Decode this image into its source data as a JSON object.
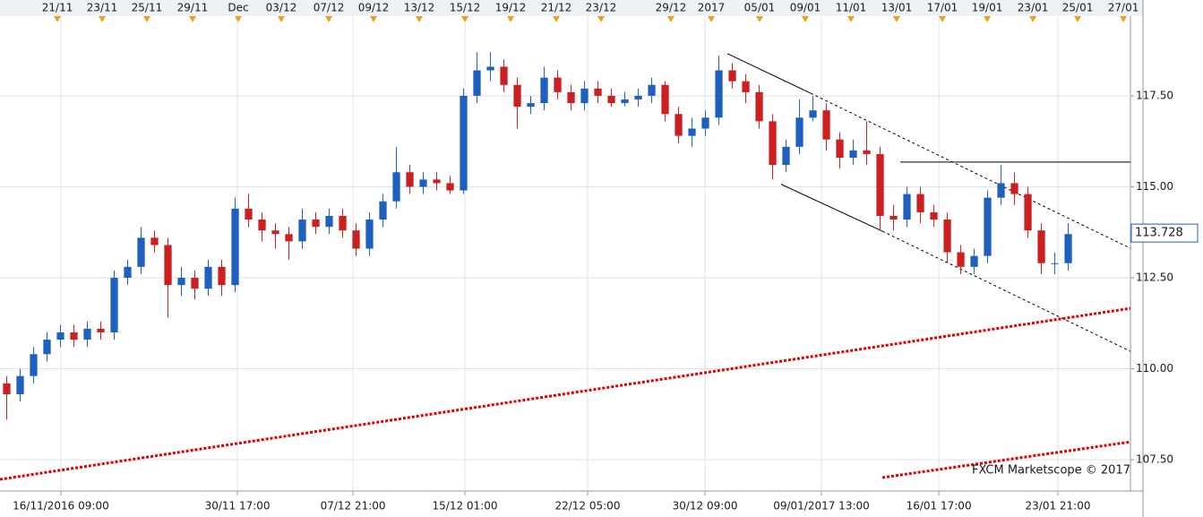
{
  "chart_data": {
    "type": "candlestick",
    "watermark": "FXCM Marketscope © 2017",
    "up_color": "#1f5fbf",
    "down_color": "#cc1f1f",
    "grid": true,
    "xlim": [
      -0.5,
      83.63
    ],
    "ylim": [
      106.64,
      119.69
    ],
    "yticks": [
      {
        "value": 117.5,
        "label": "117.50"
      },
      {
        "value": 115,
        "label": "115.00"
      },
      {
        "value": 112.5,
        "label": "112.50"
      },
      {
        "value": 110,
        "label": "110.00"
      },
      {
        "value": 107.5,
        "label": "107.50"
      }
    ],
    "xticks": [
      {
        "value": 4.03,
        "label": "16/11/2016 09:00"
      },
      {
        "value": 17.17,
        "label": "30/11 17:00"
      },
      {
        "value": 25.77,
        "label": "07/12 21:00"
      },
      {
        "value": 34.1,
        "label": "15/12 01:00"
      },
      {
        "value": 43.23,
        "label": "22/12 05:00"
      },
      {
        "value": 51.97,
        "label": "30/12 09:00"
      },
      {
        "value": 60.63,
        "label": "09/01/2017 13:00"
      },
      {
        "value": 69.37,
        "label": "16/01 17:00"
      },
      {
        "value": 78.23,
        "label": "23/01 21:00"
      }
    ],
    "top_ticks": [
      {
        "value": 3.77,
        "label": "21/11"
      },
      {
        "value": 7.1,
        "label": "23/11"
      },
      {
        "value": 10.43,
        "label": "25/11"
      },
      {
        "value": 13.83,
        "label": "29/11"
      },
      {
        "value": 17.23,
        "label": "Dec"
      },
      {
        "value": 20.43,
        "label": "03/12"
      },
      {
        "value": 23.97,
        "label": "07/12"
      },
      {
        "value": 27.3,
        "label": "09/12"
      },
      {
        "value": 30.7,
        "label": "13/12"
      },
      {
        "value": 34.1,
        "label": "15/12"
      },
      {
        "value": 37.5,
        "label": "19/12"
      },
      {
        "value": 40.9,
        "label": "21/12"
      },
      {
        "value": 44.23,
        "label": "23/12"
      },
      {
        "value": 49.43,
        "label": "29/12"
      },
      {
        "value": 52.43,
        "label": "2017"
      },
      {
        "value": 56.03,
        "label": "05/01"
      },
      {
        "value": 59.43,
        "label": "09/01"
      },
      {
        "value": 62.83,
        "label": "11/01"
      },
      {
        "value": 66.23,
        "label": "13/01"
      },
      {
        "value": 69.63,
        "label": "17/01"
      },
      {
        "value": 72.97,
        "label": "19/01"
      },
      {
        "value": 76.37,
        "label": "23/01"
      },
      {
        "value": 79.7,
        "label": "25/01"
      },
      {
        "value": 83.1,
        "label": "27/01"
      }
    ],
    "open": [
      109.6,
      109.3,
      109.8,
      110.4,
      110.8,
      111.0,
      110.8,
      111.1,
      111.0,
      112.5,
      112.8,
      113.6,
      113.4,
      112.3,
      112.5,
      112.2,
      112.8,
      112.3,
      114.4,
      114.1,
      113.8,
      113.7,
      113.5,
      114.1,
      113.9,
      114.2,
      113.8,
      113.3,
      114.1,
      114.6,
      115.4,
      115.0,
      115.2,
      115.1,
      114.9,
      117.5,
      118.2,
      118.3,
      117.8,
      117.2,
      117.3,
      118.0,
      117.6,
      117.3,
      117.7,
      117.5,
      117.3,
      117.4,
      117.5,
      117.8,
      117.0,
      116.4,
      116.6,
      116.9,
      118.2,
      117.9,
      117.6,
      116.8,
      115.6,
      116.1,
      116.9,
      117.1,
      116.3,
      115.8,
      116.0,
      115.9,
      114.2,
      114.1,
      114.8,
      114.3,
      114.1,
      113.2,
      112.8,
      113.1,
      114.7,
      115.1,
      114.8,
      113.8,
      112.9,
      112.9
    ],
    "high": [
      109.8,
      110.0,
      110.6,
      111.0,
      111.2,
      111.2,
      111.3,
      111.3,
      112.7,
      113.0,
      113.9,
      113.8,
      113.6,
      112.8,
      112.7,
      113.0,
      113.0,
      114.7,
      114.8,
      114.3,
      114.0,
      113.9,
      114.4,
      114.3,
      114.4,
      114.4,
      114.0,
      114.3,
      114.8,
      116.1,
      115.6,
      115.4,
      115.4,
      115.3,
      117.7,
      118.7,
      118.7,
      118.5,
      118.0,
      117.5,
      118.3,
      118.2,
      117.8,
      117.9,
      117.9,
      117.7,
      117.6,
      117.7,
      118.0,
      117.9,
      117.2,
      116.9,
      117.1,
      118.6,
      118.4,
      118.1,
      117.8,
      117.0,
      116.3,
      117.4,
      117.5,
      117.3,
      116.5,
      116.3,
      116.8,
      116.1,
      114.5,
      115.0,
      115.0,
      114.5,
      114.3,
      113.4,
      113.3,
      114.9,
      115.6,
      115.4,
      115.0,
      114.0,
      113.2,
      114.0
    ],
    "low": [
      108.6,
      109.1,
      109.6,
      110.2,
      110.6,
      110.6,
      110.6,
      110.8,
      110.8,
      112.3,
      112.6,
      113.2,
      111.4,
      112.0,
      111.9,
      112.0,
      112.0,
      112.1,
      113.9,
      113.5,
      113.3,
      113.0,
      113.3,
      113.7,
      113.7,
      113.6,
      113.1,
      113.1,
      113.9,
      114.4,
      114.8,
      114.8,
      114.9,
      114.8,
      114.8,
      117.3,
      117.9,
      117.6,
      116.6,
      117.0,
      117.1,
      117.4,
      117.1,
      117.1,
      117.3,
      117.2,
      117.2,
      117.2,
      117.3,
      116.8,
      116.2,
      116.1,
      116.4,
      116.7,
      117.7,
      117.3,
      116.6,
      115.2,
      115.4,
      115.9,
      116.8,
      116.0,
      115.5,
      115.6,
      115.6,
      113.8,
      113.8,
      113.9,
      114.0,
      113.9,
      112.9,
      112.6,
      112.6,
      112.9,
      114.5,
      114.5,
      113.6,
      112.6,
      112.6,
      112.7
    ],
    "close": [
      109.3,
      109.8,
      110.4,
      110.8,
      111.0,
      110.8,
      111.1,
      111.0,
      112.5,
      112.8,
      113.6,
      113.4,
      112.3,
      112.5,
      112.2,
      112.8,
      112.3,
      114.4,
      114.1,
      113.8,
      113.7,
      113.5,
      114.1,
      113.9,
      114.2,
      113.8,
      113.3,
      114.1,
      114.6,
      115.4,
      115.0,
      115.2,
      115.1,
      114.9,
      117.5,
      118.2,
      118.3,
      117.8,
      117.2,
      117.3,
      118.0,
      117.6,
      117.3,
      117.7,
      117.5,
      117.3,
      117.4,
      117.5,
      117.8,
      117.0,
      116.4,
      116.6,
      116.9,
      118.2,
      117.9,
      117.6,
      116.8,
      115.6,
      116.1,
      116.9,
      117.1,
      116.3,
      115.8,
      116.0,
      115.9,
      114.2,
      114.1,
      114.8,
      114.3,
      114.1,
      113.2,
      112.8,
      113.1,
      114.7,
      115.1,
      114.8,
      113.8,
      112.9,
      112.9,
      113.7
    ],
    "last_price": 113.728,
    "trendlines": [
      {
        "x": [
          53.63,
          59.83
        ],
        "y": [
          118.66,
          117.57
        ],
        "color": "#000000",
        "style": "solid"
      },
      {
        "x": [
          57.63,
          65.17
        ],
        "y": [
          115.07,
          113.78
        ],
        "color": "#000000",
        "style": "solid"
      },
      {
        "x": [
          59.83,
          83.63
        ],
        "y": [
          117.57,
          113.31
        ],
        "color": "#000000",
        "style": "dashed"
      },
      {
        "x": [
          65.17,
          83.63
        ],
        "y": [
          113.78,
          110.48
        ],
        "color": "#000000",
        "style": "dashed"
      },
      {
        "x": [
          66.5,
          83.63
        ],
        "y": [
          115.68,
          115.68
        ],
        "color": "#000000",
        "style": "solid"
      },
      {
        "x": [
          -0.5,
          83.63
        ],
        "y": [
          106.96,
          111.66
        ],
        "color": "#e00000",
        "style": "dotted"
      },
      {
        "x": [
          65.17,
          83.63
        ],
        "y": [
          107.01,
          107.99
        ],
        "color": "#e00000",
        "style": "dotted"
      }
    ]
  }
}
